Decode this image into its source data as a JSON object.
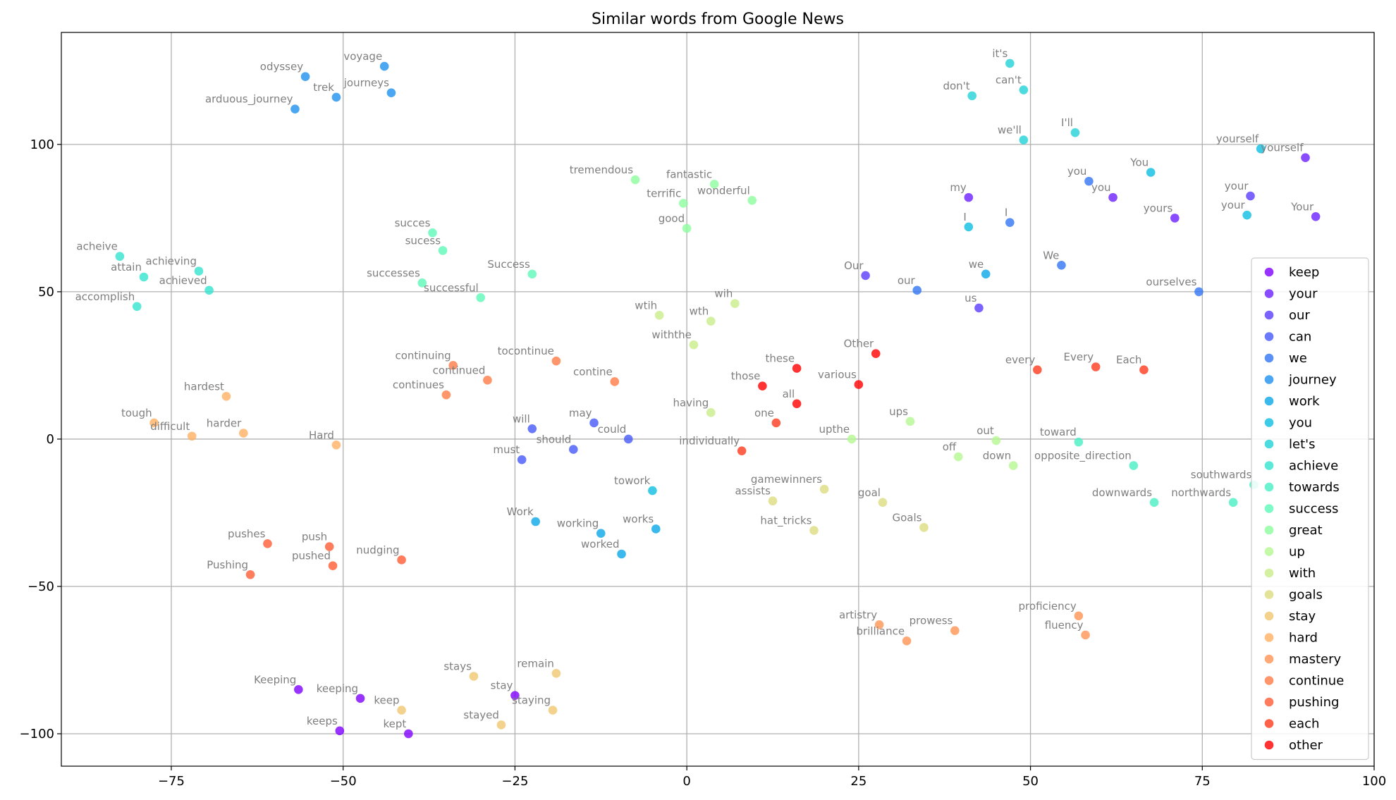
{
  "chart_data": {
    "type": "scatter",
    "title": "Similar words from Google News",
    "xlabel": "",
    "ylabel": "",
    "xlim": [
      -91,
      100
    ],
    "ylim": [
      -111,
      138
    ],
    "xticks": [
      -75,
      -50,
      -25,
      0,
      25,
      50,
      75,
      100
    ],
    "yticks": [
      -100,
      -50,
      0,
      50,
      100
    ],
    "grid": true,
    "legend_position": "right",
    "series": [
      {
        "name": "keep",
        "color": "#8000ff",
        "points": [
          {
            "label": "Keeping",
            "x": -56.5,
            "y": -85
          },
          {
            "label": "keeping",
            "x": -47.5,
            "y": -88
          },
          {
            "label": "keeps",
            "x": -50.5,
            "y": -99
          },
          {
            "label": "kept",
            "x": -40.5,
            "y": -100
          },
          {
            "label": "stay",
            "x": -25,
            "y": -87
          }
        ]
      },
      {
        "name": "your",
        "color": "#6c1ffe",
        "points": [
          {
            "label": "my",
            "x": 41,
            "y": 82
          },
          {
            "label": "you",
            "x": 62,
            "y": 82
          },
          {
            "label": "yours",
            "x": 71,
            "y": 75
          },
          {
            "label": "Your",
            "x": 91.5,
            "y": 75.5
          },
          {
            "label": "yourself",
            "x": 90,
            "y": 95.5
          }
        ]
      },
      {
        "name": "our",
        "color": "#5a3cfc",
        "points": [
          {
            "label": "Our",
            "x": 26,
            "y": 55.5
          },
          {
            "label": "us",
            "x": 42.5,
            "y": 44.5
          },
          {
            "label": "your",
            "x": 82,
            "y": 82.5
          }
        ]
      },
      {
        "name": "can",
        "color": "#4559f9",
        "points": [
          {
            "label": "will",
            "x": -22.5,
            "y": 3.5
          },
          {
            "label": "may",
            "x": -13.5,
            "y": 5.5
          },
          {
            "label": "could",
            "x": -8.5,
            "y": 0
          },
          {
            "label": "should",
            "x": -16.5,
            "y": -3.5
          },
          {
            "label": "must",
            "x": -24,
            "y": -7
          }
        ]
      },
      {
        "name": "we",
        "color": "#3276f4",
        "points": [
          {
            "label": "our",
            "x": 33.5,
            "y": 50.5
          },
          {
            "label": "I",
            "x": 47,
            "y": 73.5
          },
          {
            "label": "you",
            "x": 58.5,
            "y": 87.5
          },
          {
            "label": "We",
            "x": 54.5,
            "y": 59
          },
          {
            "label": "ourselves",
            "x": 74.5,
            "y": 50
          }
        ]
      },
      {
        "name": "journey",
        "color": "#1e91ef",
        "points": [
          {
            "label": "odyssey",
            "x": -55.5,
            "y": 123
          },
          {
            "label": "voyage",
            "x": -44,
            "y": 126.5
          },
          {
            "label": "trek",
            "x": -51,
            "y": 116
          },
          {
            "label": "journeys",
            "x": -43,
            "y": 117.5
          },
          {
            "label": "arduous_journey",
            "x": -57,
            "y": 112
          }
        ]
      },
      {
        "name": "work",
        "color": "#0aa8e9",
        "points": [
          {
            "label": "we",
            "x": 43.5,
            "y": 56
          },
          {
            "label": "Work",
            "x": -22,
            "y": -28
          },
          {
            "label": "working",
            "x": -12.5,
            "y": -32
          },
          {
            "label": "worked",
            "x": -9.5,
            "y": -39
          },
          {
            "label": "works",
            "x": -4.5,
            "y": -30.5
          }
        ]
      },
      {
        "name": "you",
        "color": "#0cbee1",
        "points": [
          {
            "label": "towork",
            "x": -5,
            "y": -17.5
          },
          {
            "label": "I",
            "x": 41,
            "y": 72
          },
          {
            "label": "your",
            "x": 81.5,
            "y": 76
          },
          {
            "label": "You",
            "x": 67.5,
            "y": 90.5
          },
          {
            "label": "yourself",
            "x": 83.5,
            "y": 98.5
          }
        ]
      },
      {
        "name": "let's",
        "color": "#20d2d8",
        "points": [
          {
            "label": "it's",
            "x": 47,
            "y": 127.5
          },
          {
            "label": "don't",
            "x": 41.5,
            "y": 116.5
          },
          {
            "label": "can't",
            "x": 49,
            "y": 118.5
          },
          {
            "label": "we'll",
            "x": 49,
            "y": 101.5
          },
          {
            "label": "I'll",
            "x": 56.5,
            "y": 104
          }
        ]
      },
      {
        "name": "achieve",
        "color": "#34e3ce",
        "points": [
          {
            "label": "acheive",
            "x": -82.5,
            "y": 62
          },
          {
            "label": "attain",
            "x": -79,
            "y": 55
          },
          {
            "label": "achieving",
            "x": -71,
            "y": 57
          },
          {
            "label": "achieved",
            "x": -69.5,
            "y": 50.5
          },
          {
            "label": "accomplish",
            "x": -80,
            "y": 45
          }
        ]
      },
      {
        "name": "towards",
        "color": "#48efc3",
        "points": [
          {
            "label": "toward",
            "x": 57,
            "y": -1
          },
          {
            "label": "opposite_direction",
            "x": 65,
            "y": -9
          },
          {
            "label": "downwards",
            "x": 68,
            "y": -21.5
          },
          {
            "label": "northwards",
            "x": 79.5,
            "y": -21.5
          },
          {
            "label": "southwards",
            "x": 82.5,
            "y": -15.5
          }
        ]
      },
      {
        "name": "success",
        "color": "#5cf9b7",
        "points": [
          {
            "label": "succes",
            "x": -37,
            "y": 70
          },
          {
            "label": "sucess",
            "x": -35.5,
            "y": 64
          },
          {
            "label": "successes",
            "x": -38.5,
            "y": 53
          },
          {
            "label": "successful",
            "x": -30,
            "y": 48
          },
          {
            "label": "Success",
            "x": -22.5,
            "y": 56
          }
        ]
      },
      {
        "name": "great",
        "color": "#8cfe9e",
        "points": [
          {
            "label": "tremendous",
            "x": -7.5,
            "y": 88
          },
          {
            "label": "fantastic",
            "x": 4,
            "y": 86.5
          },
          {
            "label": "terrific",
            "x": -0.5,
            "y": 80
          },
          {
            "label": "wonderful",
            "x": 9.5,
            "y": 81
          },
          {
            "label": "good",
            "x": 0,
            "y": 71.5
          }
        ]
      },
      {
        "name": "up",
        "color": "#b4f891",
        "points": [
          {
            "label": "ups",
            "x": 32.5,
            "y": 6
          },
          {
            "label": "upthe",
            "x": 24,
            "y": 0
          },
          {
            "label": "out",
            "x": 45,
            "y": -0.5
          },
          {
            "label": "off",
            "x": 39.5,
            "y": -6
          },
          {
            "label": "down",
            "x": 47.5,
            "y": -9
          }
        ]
      },
      {
        "name": "with",
        "color": "#c8ed88",
        "points": [
          {
            "label": "wtih",
            "x": -4,
            "y": 42
          },
          {
            "label": "wih",
            "x": 7,
            "y": 46
          },
          {
            "label": "wth",
            "x": 3.5,
            "y": 40
          },
          {
            "label": "withthe",
            "x": 1,
            "y": 32
          },
          {
            "label": "having",
            "x": 3.5,
            "y": 9
          }
        ]
      },
      {
        "name": "goals",
        "color": "#dcdc7f",
        "points": [
          {
            "label": "gamewinners",
            "x": 20,
            "y": -17
          },
          {
            "label": "assists",
            "x": 12.5,
            "y": -21
          },
          {
            "label": "goal",
            "x": 28.5,
            "y": -21.5
          },
          {
            "label": "hat_tricks",
            "x": 18.5,
            "y": -31
          },
          {
            "label": "Goals",
            "x": 34.5,
            "y": -30
          }
        ]
      },
      {
        "name": "stay",
        "color": "#f0c772",
        "points": [
          {
            "label": "stays",
            "x": -31,
            "y": -80.5
          },
          {
            "label": "remain",
            "x": -19,
            "y": -79.5
          },
          {
            "label": "keep",
            "x": -41.5,
            "y": -92
          },
          {
            "label": "staying",
            "x": -19.5,
            "y": -92
          },
          {
            "label": "stayed",
            "x": -27,
            "y": -97
          }
        ]
      },
      {
        "name": "hard",
        "color": "#ffb063",
        "points": [
          {
            "label": "hardest",
            "x": -67,
            "y": 14.5
          },
          {
            "label": "tough",
            "x": -77.5,
            "y": 5.5
          },
          {
            "label": "difficult",
            "x": -72,
            "y": 1
          },
          {
            "label": "harder",
            "x": -64.5,
            "y": 2
          },
          {
            "label": "Hard",
            "x": -51,
            "y": -2
          }
        ]
      },
      {
        "name": "mastery",
        "color": "#ff9554",
        "points": [
          {
            "label": "proficiency",
            "x": 57,
            "y": -60
          },
          {
            "label": "artistry",
            "x": 28,
            "y": -63
          },
          {
            "label": "prowess",
            "x": 39,
            "y": -65
          },
          {
            "label": "brilliance",
            "x": 32,
            "y": -68.5
          },
          {
            "label": "fluency",
            "x": 58,
            "y": -66.5
          }
        ]
      },
      {
        "name": "continue",
        "color": "#ff7a45",
        "points": [
          {
            "label": "continuing",
            "x": -34,
            "y": 25
          },
          {
            "label": "tocontinue",
            "x": -19,
            "y": 26.5
          },
          {
            "label": "contine",
            "x": -10.5,
            "y": 19.5
          },
          {
            "label": "continued",
            "x": -29,
            "y": 20
          },
          {
            "label": "continues",
            "x": -35,
            "y": 15
          }
        ]
      },
      {
        "name": "pushing",
        "color": "#ff5b35",
        "points": [
          {
            "label": "pushes",
            "x": -61,
            "y": -35.5
          },
          {
            "label": "push",
            "x": -52,
            "y": -36.5
          },
          {
            "label": "pushed",
            "x": -51.5,
            "y": -43
          },
          {
            "label": "Pushing",
            "x": -63.5,
            "y": -46
          },
          {
            "label": "nudging",
            "x": -41.5,
            "y": -41
          }
        ]
      },
      {
        "name": "each",
        "color": "#ff3b1e",
        "points": [
          {
            "label": "individually",
            "x": 8,
            "y": -4
          },
          {
            "label": "one",
            "x": 13,
            "y": 5.5
          },
          {
            "label": "every",
            "x": 51,
            "y": 23.5
          },
          {
            "label": "Every",
            "x": 59.5,
            "y": 24.5
          },
          {
            "label": "Each",
            "x": 66.5,
            "y": 23.5
          }
        ]
      },
      {
        "name": "other",
        "color": "#ff0000",
        "points": [
          {
            "label": "Other",
            "x": 27.5,
            "y": 29
          },
          {
            "label": "these",
            "x": 16,
            "y": 24
          },
          {
            "label": "those",
            "x": 11,
            "y": 18
          },
          {
            "label": "various",
            "x": 25,
            "y": 18.5
          },
          {
            "label": "all",
            "x": 16,
            "y": 12
          }
        ]
      }
    ]
  }
}
